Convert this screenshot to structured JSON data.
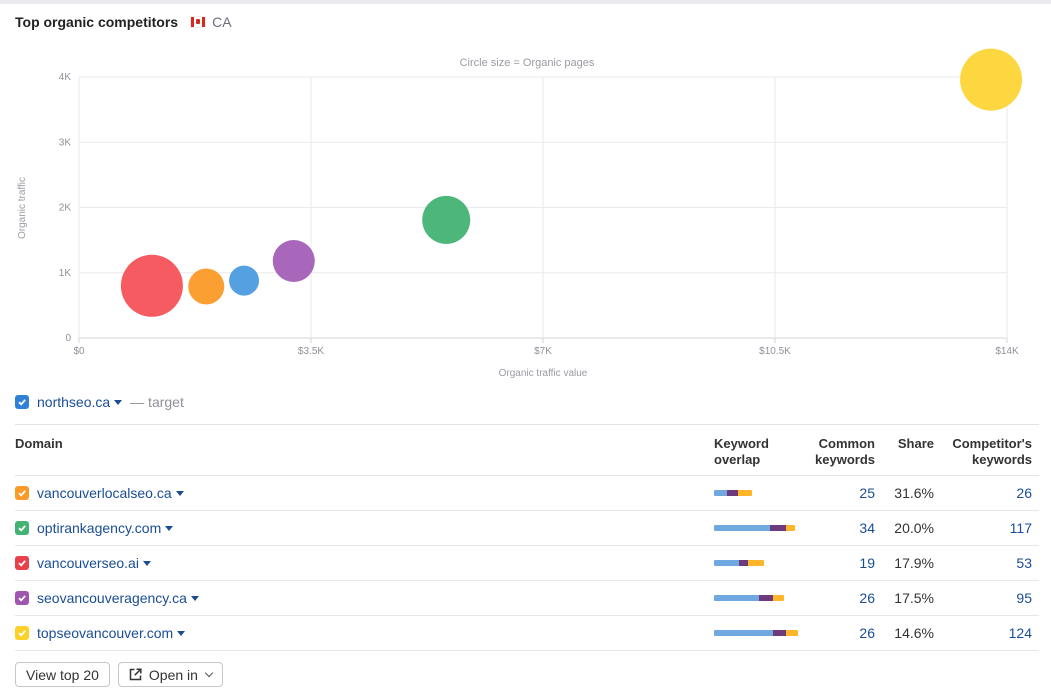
{
  "header": {
    "title": "Top organic competitors",
    "country": "CA",
    "flag_icon": "canada-flag-icon"
  },
  "chart_data": {
    "type": "scatter",
    "title": "Circle size = Organic pages",
    "xlabel": "Organic traffic value",
    "ylabel": "Organic traffic",
    "xlim": [
      0,
      14000
    ],
    "ylim": [
      0,
      4000
    ],
    "x_ticks": [
      0,
      3500,
      7000,
      10500,
      14000
    ],
    "x_tick_labels": [
      "$0",
      "$3.5K",
      "$7K",
      "$10.5K",
      "$14K"
    ],
    "y_ticks": [
      0,
      1000,
      2000,
      3000,
      4000
    ],
    "y_tick_labels": [
      "0",
      "1K",
      "2K",
      "3K",
      "4K"
    ],
    "grid": true,
    "points": [
      {
        "domain": "vancouverseo.ai",
        "x": 1100,
        "y": 800,
        "size": 31,
        "color": "#f5525a"
      },
      {
        "domain": "vancouverlocalseo.ca",
        "x": 1920,
        "y": 790,
        "size": 18,
        "color": "#fb9a28"
      },
      {
        "domain": "northseo.ca",
        "x": 2490,
        "y": 880,
        "size": 15,
        "color": "#4c9bdf"
      },
      {
        "domain": "seovancouveragency.ca",
        "x": 3240,
        "y": 1180,
        "size": 21,
        "color": "#a35fb7"
      },
      {
        "domain": "optirankagency.com",
        "x": 5540,
        "y": 1810,
        "size": 24,
        "color": "#43b374"
      },
      {
        "domain": "topseovancouver.com",
        "x": 13760,
        "y": 3960,
        "size": 31,
        "color": "#fdd536"
      }
    ]
  },
  "target": {
    "domain": "northseo.ca",
    "tag": "— target",
    "color": "#3080d8"
  },
  "table": {
    "headers": {
      "domain": "Domain",
      "overlap_1": "Keyword",
      "overlap_2": "overlap",
      "common_1": "Common",
      "common_2": "keywords",
      "share": "Share",
      "comp_1": "Competitor's",
      "comp_2": "keywords"
    },
    "overlap_colors": [
      "#6fa9df",
      "#6d3a7c",
      "#ffb52a"
    ],
    "rows": [
      {
        "domain": "vancouverlocalseo.ca",
        "color": "#fb9a28",
        "common": "25",
        "share": "31.6%",
        "comp": "26",
        "overlap": [
          13,
          11,
          14
        ]
      },
      {
        "domain": "optirankagency.com",
        "color": "#43b374",
        "common": "34",
        "share": "20.0%",
        "comp": "117",
        "overlap": [
          56,
          16,
          9
        ]
      },
      {
        "domain": "vancouverseo.ai",
        "color": "#e8414c",
        "common": "19",
        "share": "17.9%",
        "comp": "53",
        "overlap": [
          25,
          9,
          16
        ]
      },
      {
        "domain": "seovancouveragency.ca",
        "color": "#9e56b0",
        "common": "26",
        "share": "17.5%",
        "comp": "95",
        "overlap": [
          45,
          14,
          11
        ]
      },
      {
        "domain": "topseovancouver.com",
        "color": "#fcd12a",
        "common": "26",
        "share": "14.6%",
        "comp": "124",
        "overlap": [
          59,
          13,
          12
        ]
      }
    ]
  },
  "footer": {
    "view_top": "View top 20",
    "open_in": "Open in"
  }
}
